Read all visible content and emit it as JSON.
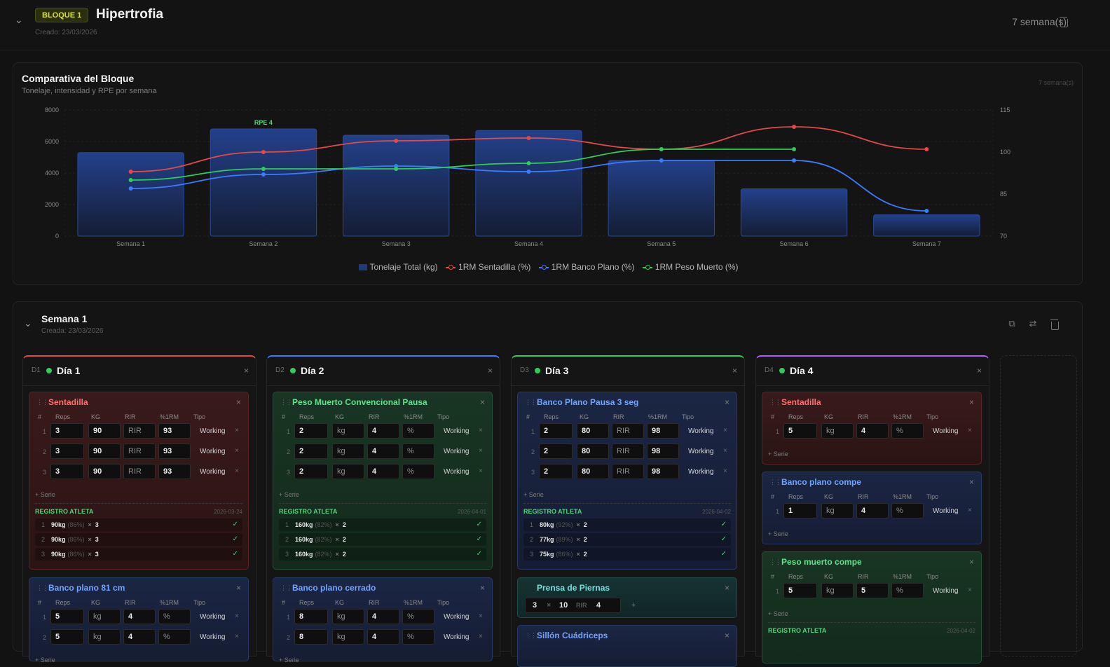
{
  "block": {
    "badge": "BLOQUE 1",
    "title": "Hipertrofia",
    "created": "Creado: 23/03/2026",
    "weeks_count": "7 semana(s)"
  },
  "chart_card": {
    "title": "Comparativa del Bloque",
    "subtitle": "Tonelaje, intensidad y RPE por semana",
    "tag": "7 semana(s)"
  },
  "chart_data": {
    "type": "bar",
    "categories": [
      "Semana 1",
      "Semana 2",
      "Semana 3",
      "Semana 4",
      "Semana 5",
      "Semana 6",
      "Semana 7"
    ],
    "ylim": [
      0,
      8000
    ],
    "yticks": [
      0,
      2000,
      4000,
      6000,
      8000
    ],
    "y2lim": [
      70,
      115
    ],
    "y2ticks": [
      70,
      85,
      100,
      115
    ],
    "annotation": {
      "category": "Semana 2",
      "text": "RPE 4"
    },
    "bars": {
      "name": "Tonelaje Total (kg)",
      "color": "#1f3a7a",
      "values": [
        5300,
        6800,
        6400,
        6700,
        4800,
        3000,
        1350
      ]
    },
    "series": [
      {
        "name": "1RM Sentadilla (%)",
        "color": "#e24a4a",
        "values": [
          93,
          100,
          104,
          105,
          101,
          109,
          101
        ]
      },
      {
        "name": "1RM Banco Plano (%)",
        "color": "#3b7bff",
        "values": [
          87,
          92,
          95,
          93,
          97,
          97,
          79
        ]
      },
      {
        "name": "1RM Peso Muerto (%)",
        "color": "#2ecc5a",
        "values": [
          90,
          94,
          94,
          96,
          101,
          101,
          null
        ]
      }
    ]
  },
  "week": {
    "title": "Semana 1",
    "created": "Creada: 23/03/2026"
  },
  "labels": {
    "hash": "#",
    "reps": "Reps",
    "kg": "KG",
    "rir": "RIR",
    "irm": "%1RM",
    "tipo": "Tipo",
    "add_serie": "+ Serie",
    "registro": "REGISTRO ATLETA",
    "working": "Working",
    "x": "×",
    "close": "×",
    "check": "✓",
    "kg_ph": "kg",
    "rir_ph": "RIR",
    "pct_ph": "%"
  },
  "days": [
    {
      "code": "D1",
      "name": "Día 1",
      "accent": "#e24a4a",
      "ex1": {
        "name": "Sentadilla",
        "rows": [
          [
            "1",
            "3",
            "90",
            "RIR",
            "93"
          ],
          [
            "2",
            "3",
            "90",
            "RIR",
            "93"
          ],
          [
            "3",
            "3",
            "90",
            "RIR",
            "93"
          ]
        ],
        "reg_date": "2026-03-24",
        "reg": [
          [
            "1",
            "90kg",
            "(86%)",
            "3"
          ],
          [
            "2",
            "90kg",
            "(86%)",
            "3"
          ],
          [
            "3",
            "90kg",
            "(86%)",
            "3"
          ]
        ]
      },
      "ex2": {
        "name": "Banco plano 81 cm",
        "rows": [
          [
            "1",
            "5",
            "kg",
            "4",
            "%"
          ],
          [
            "2",
            "5",
            "kg",
            "4",
            "%"
          ]
        ]
      }
    },
    {
      "code": "D2",
      "name": "Día 2",
      "accent": "#3b7bff",
      "ex1": {
        "name": "Peso Muerto Convencional Pausa",
        "rows": [
          [
            "1",
            "2",
            "kg",
            "4",
            "%"
          ],
          [
            "2",
            "2",
            "kg",
            "4",
            "%"
          ],
          [
            "3",
            "2",
            "kg",
            "4",
            "%"
          ]
        ],
        "reg_date": "2026-04-01",
        "reg": [
          [
            "1",
            "160kg",
            "(82%)",
            "2"
          ],
          [
            "2",
            "160kg",
            "(82%)",
            "2"
          ],
          [
            "3",
            "160kg",
            "(82%)",
            "2"
          ]
        ]
      },
      "ex2": {
        "name": "Banco plano cerrado",
        "rows": [
          [
            "1",
            "8",
            "kg",
            "4",
            "%"
          ],
          [
            "2",
            "8",
            "kg",
            "4",
            "%"
          ]
        ]
      }
    },
    {
      "code": "D3",
      "name": "Día 3",
      "accent": "#2ecc5a",
      "ex1": {
        "name": "Banco Plano Pausa 3 seg",
        "rows": [
          [
            "1",
            "2",
            "80",
            "RIR",
            "98"
          ],
          [
            "2",
            "2",
            "80",
            "RIR",
            "98"
          ],
          [
            "3",
            "2",
            "80",
            "RIR",
            "98"
          ]
        ],
        "reg_date": "2026-04-02",
        "reg": [
          [
            "1",
            "80kg",
            "(92%)",
            "2"
          ],
          [
            "2",
            "77kg",
            "(89%)",
            "2"
          ],
          [
            "3",
            "75kg",
            "(86%)",
            "2"
          ]
        ]
      },
      "ex2": {
        "name": "Prensa de Piernas",
        "compact": [
          "3",
          "×",
          "10",
          "RIR",
          "4",
          "+"
        ]
      },
      "ex3": {
        "name": "Sillón Cuádriceps"
      }
    },
    {
      "code": "D4",
      "name": "Día 4",
      "accent": "#b05cff",
      "ex1": {
        "name": "Sentadilla",
        "rows": [
          [
            "1",
            "5",
            "kg",
            "4",
            "%"
          ]
        ]
      },
      "ex2": {
        "name": "Banco plano compe",
        "rows": [
          [
            "1",
            "1",
            "kg",
            "4",
            "%"
          ]
        ]
      },
      "ex3": {
        "name": "Peso muerto compe",
        "rows": [
          [
            "1",
            "5",
            "kg",
            "5",
            "%"
          ]
        ],
        "reg_date": "2026-04-02"
      }
    }
  ]
}
